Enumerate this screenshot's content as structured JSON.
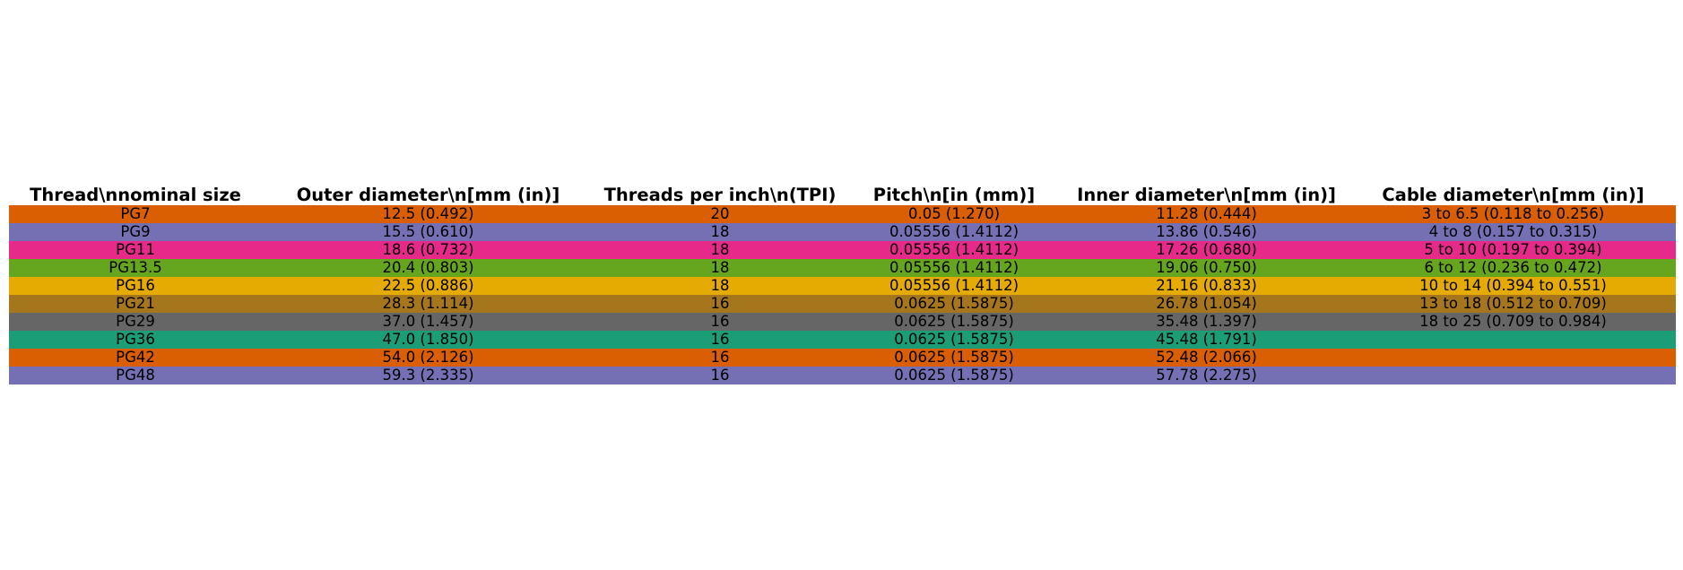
{
  "chart_data": {
    "type": "table",
    "columns": [
      "Thread\\nnominal size",
      "Outer diameter\\n[mm (in)]",
      "Threads per inch\\n(TPI)",
      "Pitch\\n[in (mm)]",
      "Inner diameter\\n[mm (in)]",
      "Cable diameter\\n[mm (in)]"
    ],
    "rows": [
      {
        "color": "#d95f02",
        "cells": [
          "PG7",
          "12.5 (0.492)",
          "20",
          "0.05 (1.270)",
          "11.28 (0.444)",
          "3 to 6.5 (0.118 to 0.256)"
        ]
      },
      {
        "color": "#7570b3",
        "cells": [
          "PG9",
          "15.5 (0.610)",
          "18",
          "0.05556 (1.4112)",
          "13.86 (0.546)",
          "4 to 8 (0.157 to 0.315)"
        ]
      },
      {
        "color": "#e7298a",
        "cells": [
          "PG11",
          "18.6 (0.732)",
          "18",
          "0.05556 (1.4112)",
          "17.26 (0.680)",
          "5 to 10 (0.197 to 0.394)"
        ]
      },
      {
        "color": "#66a61e",
        "cells": [
          "PG13.5",
          "20.4 (0.803)",
          "18",
          "0.05556 (1.4112)",
          "19.06 (0.750)",
          "6 to 12 (0.236 to 0.472)"
        ]
      },
      {
        "color": "#e6ab02",
        "cells": [
          "PG16",
          "22.5 (0.886)",
          "18",
          "0.05556 (1.4112)",
          "21.16 (0.833)",
          "10 to 14 (0.394 to 0.551)"
        ]
      },
      {
        "color": "#a6761d",
        "cells": [
          "PG21",
          "28.3 (1.114)",
          "16",
          "0.0625 (1.5875)",
          "26.78 (1.054)",
          "13 to 18 (0.512 to 0.709)"
        ]
      },
      {
        "color": "#666666",
        "cells": [
          "PG29",
          "37.0 (1.457)",
          "16",
          "0.0625 (1.5875)",
          "35.48 (1.397)",
          "18 to 25 (0.709 to 0.984)"
        ]
      },
      {
        "color": "#1b9e77",
        "cells": [
          "PG36",
          "47.0 (1.850)",
          "16",
          "0.0625 (1.5875)",
          "45.48 (1.791)",
          ""
        ]
      },
      {
        "color": "#d95f02",
        "cells": [
          "PG42",
          "54.0 (2.126)",
          "16",
          "0.0625 (1.5875)",
          "52.48 (2.066)",
          ""
        ]
      },
      {
        "color": "#7570b3",
        "cells": [
          "PG48",
          "59.3 (2.335)",
          "16",
          "0.0625 (1.5875)",
          "57.78 (2.275)",
          ""
        ]
      }
    ]
  }
}
